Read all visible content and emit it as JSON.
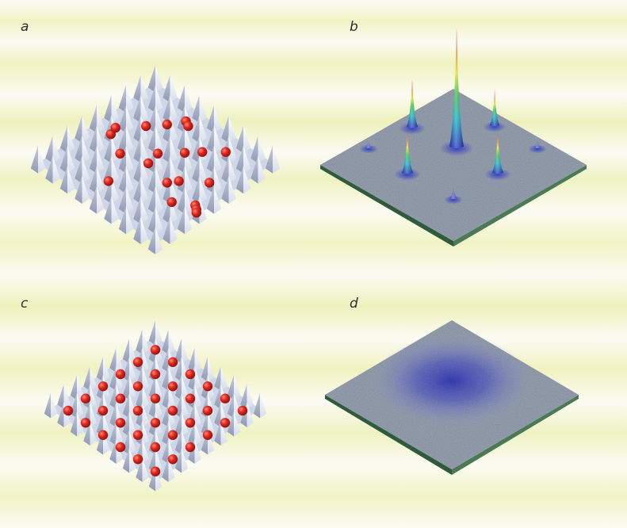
{
  "panels": [
    {
      "label": "a",
      "lattice": "optical-lattice",
      "atoms": "irregular-filling"
    },
    {
      "label": "b",
      "lattice": "none",
      "atoms": "interference-peaks"
    },
    {
      "label": "c",
      "lattice": "optical-lattice",
      "atoms": "one-per-site"
    },
    {
      "label": "d",
      "lattice": "none",
      "atoms": "diffuse-cloud"
    }
  ],
  "colors": {
    "background_stripe_yellow": "#f1f3c4",
    "background_stripe_white": "#fbfbf3",
    "lattice_surface": "#dfe4f0",
    "lattice_shadow": "#aab2c8",
    "atom": "#e0281e",
    "plate_surface": "#8e98a8",
    "plate_edge": "#3f6a4a",
    "cloud": "#2b33b8"
  }
}
